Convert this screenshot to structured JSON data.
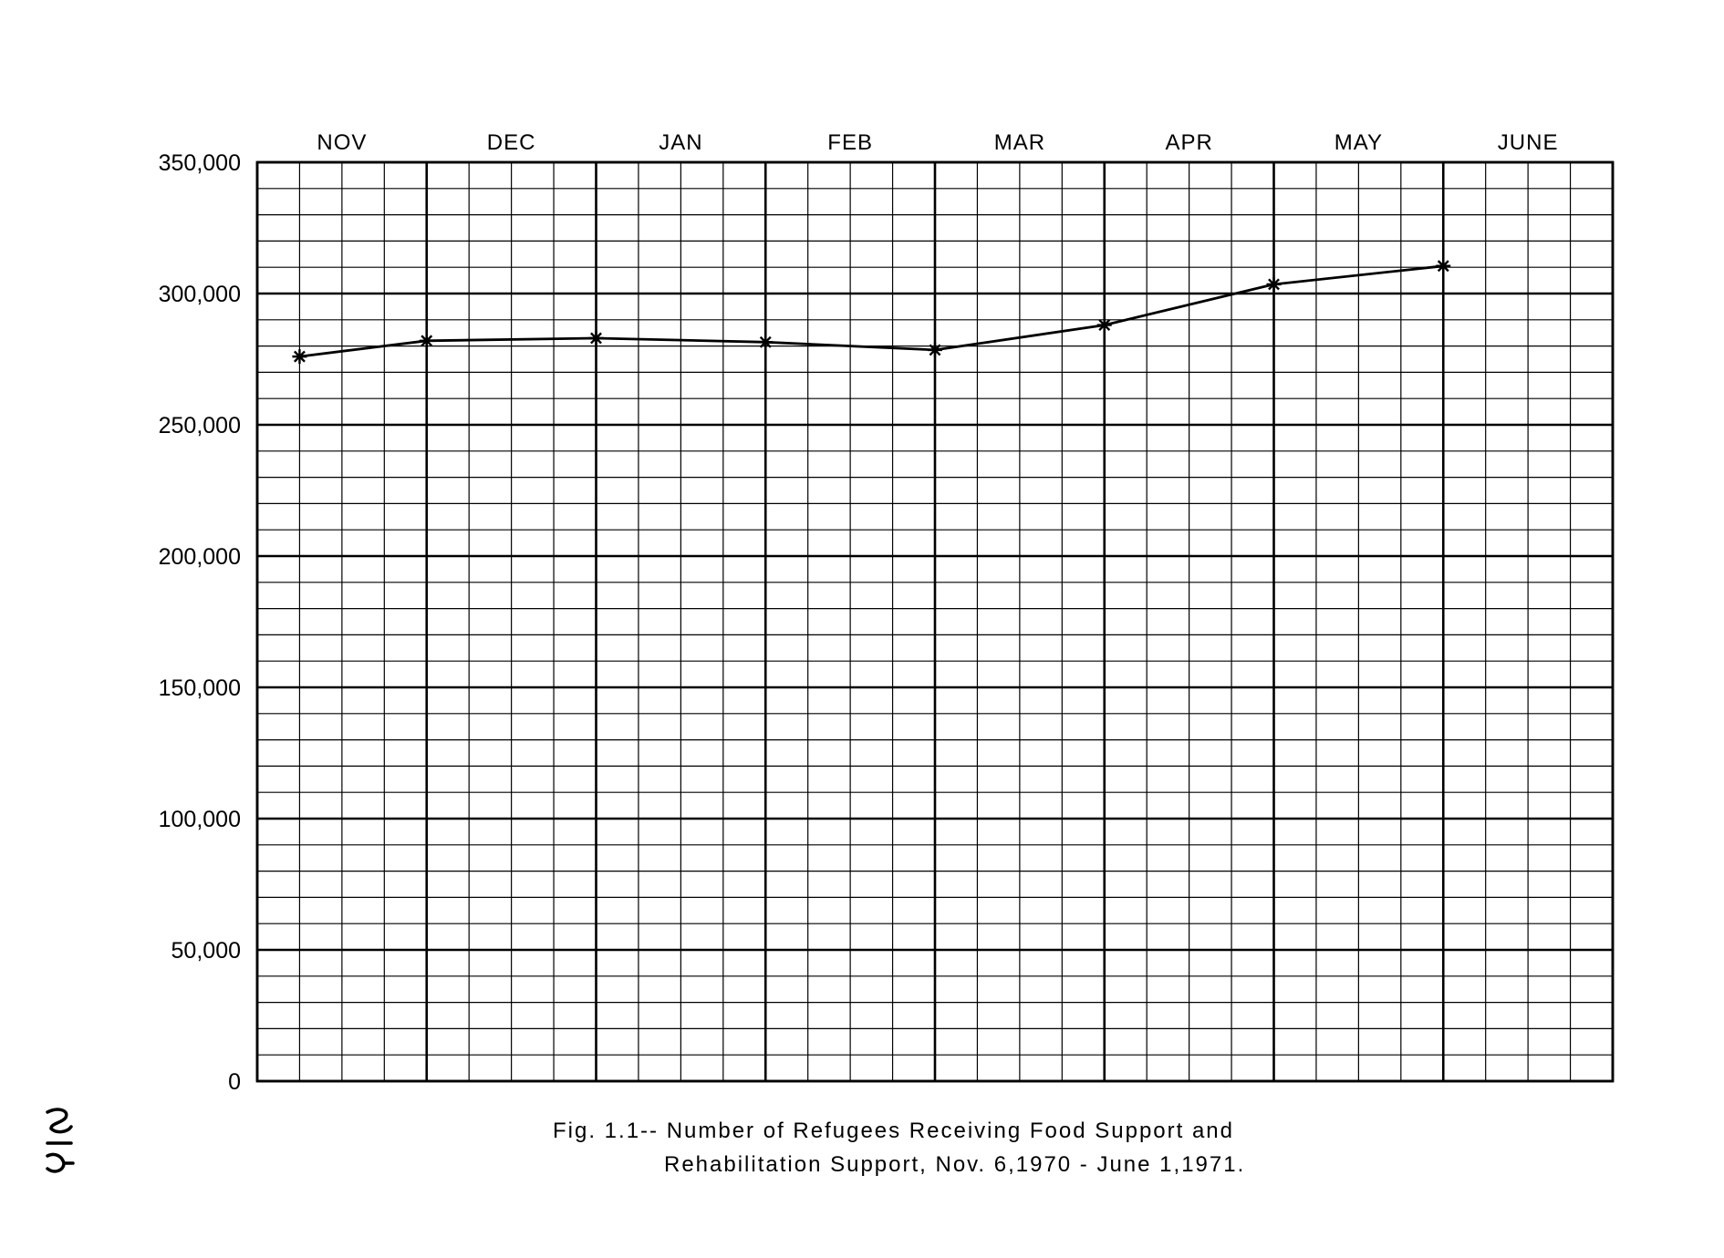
{
  "chart_data": {
    "type": "line",
    "x_labels_top": [
      "NOV",
      "DEC",
      "JAN",
      "FEB",
      "MAR",
      "APR",
      "MAY",
      "JUNE"
    ],
    "y_tick_labels": [
      "350,000",
      "300,000",
      "250,000",
      "200,000",
      "150,000",
      "100,000",
      "50,000",
      "0"
    ],
    "y_ticks": [
      350000,
      300000,
      250000,
      200000,
      150000,
      100000,
      50000,
      0
    ],
    "ylim": [
      0,
      350000
    ],
    "xlim": [
      0,
      8
    ],
    "marker": "asterisk",
    "grid": true,
    "series": [
      {
        "x": [
          0.25,
          1.0,
          2.0,
          3.0,
          4.0,
          5.0,
          6.0,
          7.0
        ],
        "values": [
          276000,
          282000,
          283000,
          281500,
          278500,
          288000,
          303500,
          310500
        ]
      }
    ],
    "caption_line1": "Fig. 1.1-- Number  of  Refugees  Receiving  Food  Support  and",
    "caption_line2": "Rehabilitation  Support,  Nov. 6,1970 - June 1,1971."
  },
  "page_number": "214",
  "colors": {
    "ink": "#000000",
    "paper": "#ffffff"
  }
}
